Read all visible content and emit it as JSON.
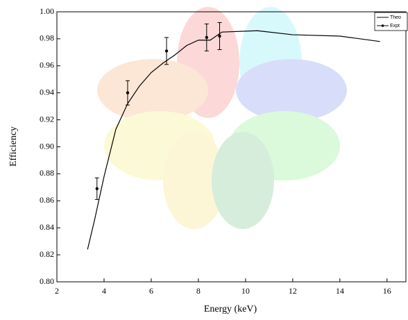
{
  "chart_data": {
    "type": "line",
    "xlabel": "Energy (keV)",
    "ylabel": "Efficiency",
    "xlim": [
      2,
      16.8
    ],
    "ylim": [
      0.8,
      1.0
    ],
    "xticks": [
      2,
      4,
      6,
      8,
      10,
      12,
      14,
      16
    ],
    "yticks": [
      {
        "value": 0.8,
        "label": "0.80"
      },
      {
        "value": 0.82,
        "label": "0.82"
      },
      {
        "value": 0.84,
        "label": "0.84"
      },
      {
        "value": 0.86,
        "label": "0.86"
      },
      {
        "value": 0.88,
        "label": "0.88"
      },
      {
        "value": 0.9,
        "label": "0.90"
      },
      {
        "value": 0.92,
        "label": "0.92"
      },
      {
        "value": 0.94,
        "label": "0.94"
      },
      {
        "value": 0.96,
        "label": "0.96"
      },
      {
        "value": 0.98,
        "label": "0.98"
      },
      {
        "value": 1.0,
        "label": "1.00"
      }
    ],
    "legend": "top-right",
    "series": [
      {
        "name": "Theo",
        "color": "#000000",
        "markers": false,
        "x": [
          3.3,
          3.6,
          4.0,
          4.5,
          5.0,
          5.5,
          6.0,
          6.5,
          7.0,
          7.5,
          8.0,
          8.5,
          9.0,
          10.5,
          12.0,
          14.0,
          15.7
        ],
        "values": [
          0.824,
          0.846,
          0.878,
          0.913,
          0.932,
          0.945,
          0.955,
          0.962,
          0.968,
          0.975,
          0.979,
          0.979,
          0.985,
          0.986,
          0.983,
          0.982,
          0.978
        ]
      },
      {
        "name": "Expt",
        "color": "#000000",
        "markers": true,
        "line": false,
        "x": [
          3.7,
          5.0,
          6.65,
          8.35,
          8.9
        ],
        "values": [
          0.869,
          0.94,
          0.971,
          0.981,
          0.982
        ],
        "errors": [
          0.008,
          0.009,
          0.01,
          0.01,
          0.01
        ]
      }
    ]
  }
}
